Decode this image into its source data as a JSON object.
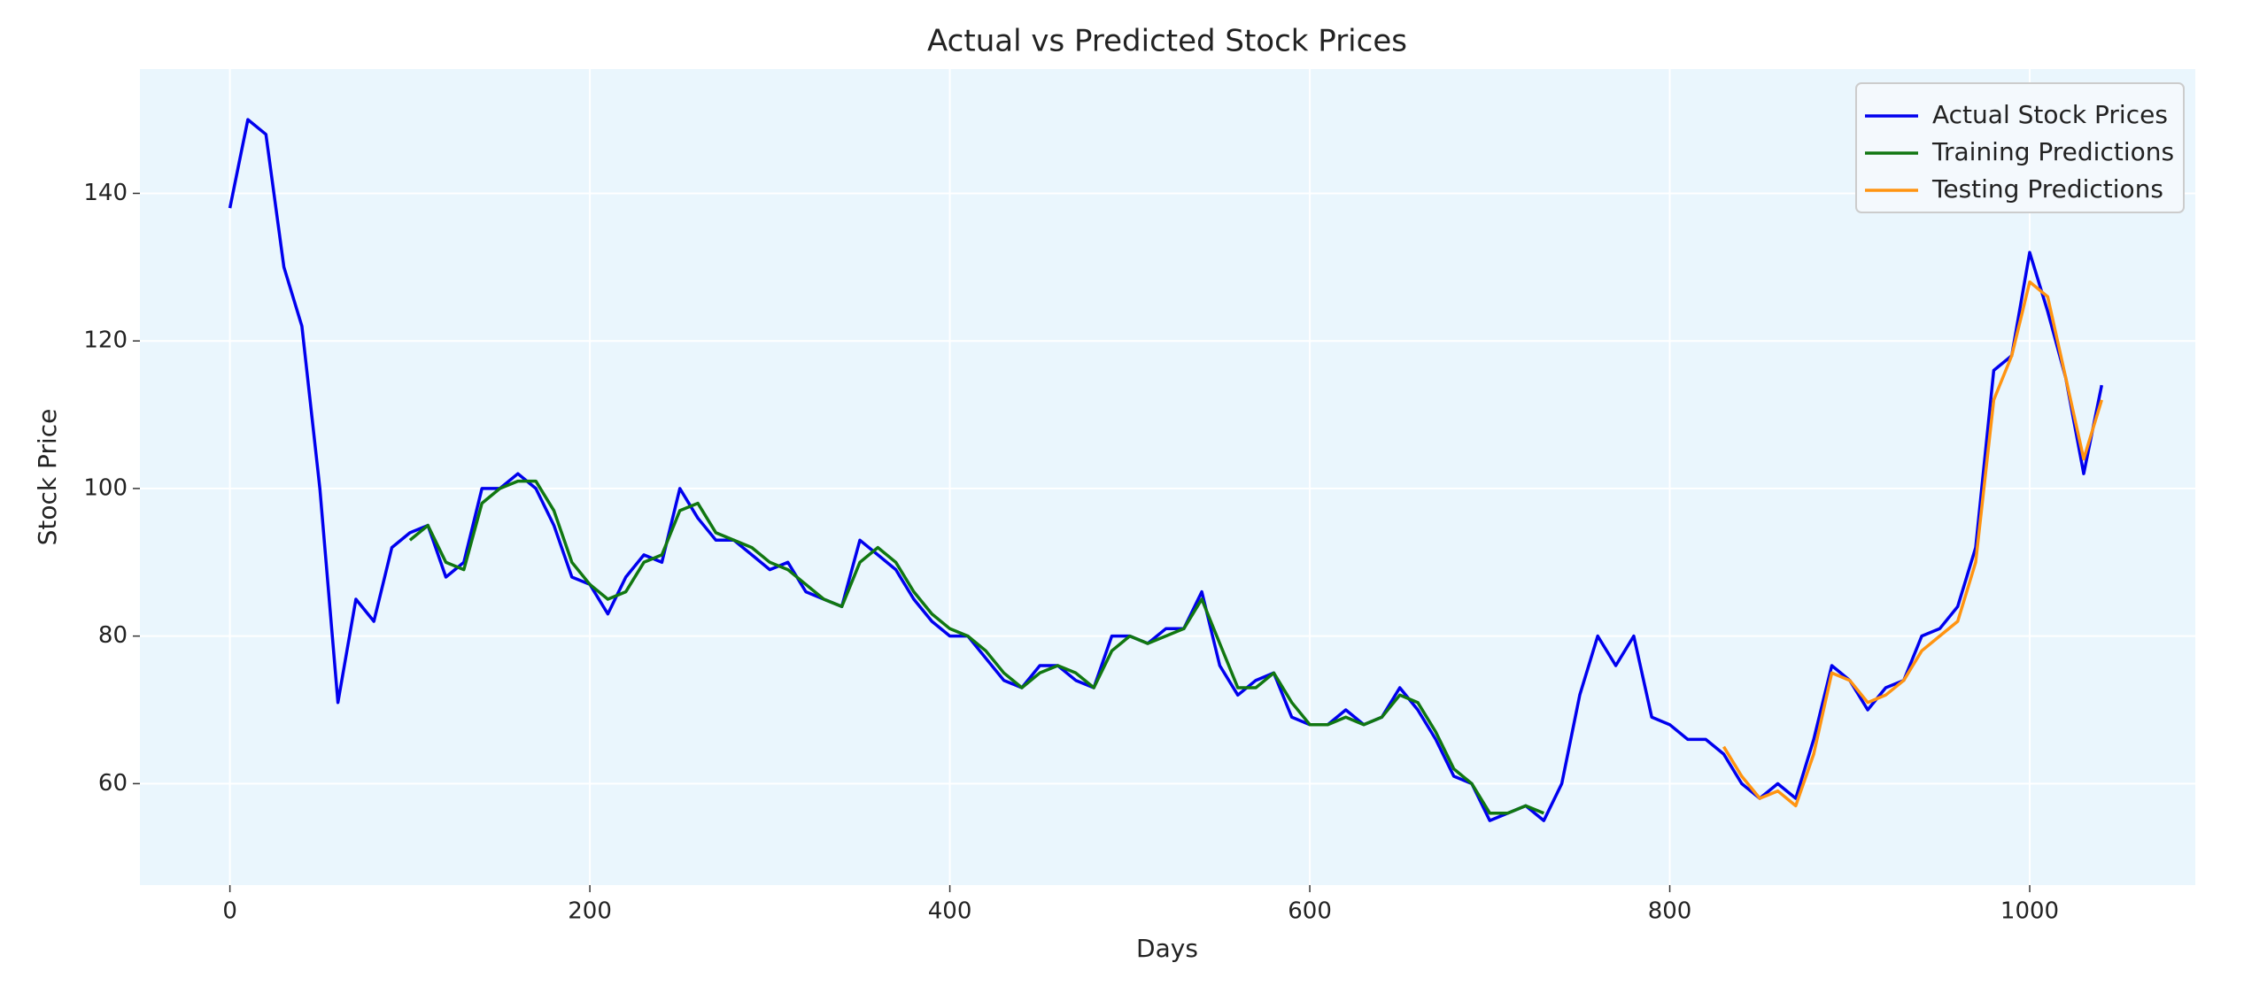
{
  "chart_data": {
    "type": "line",
    "title": "Actual vs Predicted Stock Prices",
    "xlabel": "Days",
    "ylabel": "Stock Price",
    "xlim": [
      -50,
      1092
    ],
    "ylim": [
      46.25,
      156.85
    ],
    "xticks": [
      0,
      200,
      400,
      600,
      800,
      1000
    ],
    "yticks": [
      60,
      80,
      100,
      120,
      140
    ],
    "grid": true,
    "legend": "upper right",
    "series": [
      {
        "name": "Actual Stock Prices",
        "color": "#0000ee",
        "x": [
          0,
          10,
          20,
          30,
          40,
          50,
          60,
          70,
          80,
          90,
          100,
          110,
          120,
          130,
          140,
          150,
          160,
          170,
          180,
          190,
          200,
          210,
          220,
          230,
          240,
          250,
          260,
          270,
          280,
          290,
          300,
          310,
          320,
          330,
          340,
          350,
          360,
          370,
          380,
          390,
          400,
          410,
          420,
          430,
          440,
          450,
          460,
          470,
          480,
          490,
          500,
          510,
          520,
          530,
          540,
          550,
          560,
          570,
          580,
          590,
          600,
          610,
          620,
          630,
          640,
          650,
          660,
          670,
          680,
          690,
          700,
          710,
          720,
          730,
          740,
          750,
          760,
          770,
          780,
          790,
          800,
          810,
          820,
          830,
          840,
          850,
          860,
          870,
          880,
          890,
          900,
          910,
          920,
          930,
          940,
          950,
          960,
          970,
          980,
          990,
          1000,
          1010,
          1020,
          1030,
          1040
        ],
        "values": [
          138,
          150,
          148,
          130,
          122,
          100,
          71,
          85,
          82,
          92,
          94,
          95,
          88,
          90,
          100,
          100,
          102,
          100,
          95,
          88,
          87,
          83,
          88,
          91,
          90,
          100,
          96,
          93,
          93,
          91,
          89,
          90,
          86,
          85,
          84,
          93,
          91,
          89,
          85,
          82,
          80,
          80,
          77,
          74,
          73,
          76,
          76,
          74,
          73,
          80,
          80,
          79,
          81,
          81,
          86,
          76,
          72,
          74,
          75,
          69,
          68,
          68,
          70,
          68,
          69,
          73,
          70,
          66,
          61,
          60,
          55,
          56,
          57,
          55,
          60,
          72,
          80,
          76,
          80,
          69,
          68,
          66,
          66,
          64,
          60,
          58,
          60,
          58,
          66,
          76,
          74,
          70,
          73,
          74,
          80,
          81,
          84,
          92,
          116,
          118,
          132,
          124,
          115,
          102,
          114
        ]
      },
      {
        "name": "Training Predictions",
        "color": "#117711",
        "x": [
          100,
          110,
          120,
          130,
          140,
          150,
          160,
          170,
          180,
          190,
          200,
          210,
          220,
          230,
          240,
          250,
          260,
          270,
          280,
          290,
          300,
          310,
          320,
          330,
          340,
          350,
          360,
          370,
          380,
          390,
          400,
          410,
          420,
          430,
          440,
          450,
          460,
          470,
          480,
          490,
          500,
          510,
          520,
          530,
          540,
          550,
          560,
          570,
          580,
          590,
          600,
          610,
          620,
          630,
          640,
          650,
          660,
          670,
          680,
          690,
          700,
          710,
          720,
          730
        ],
        "values": [
          93,
          95,
          90,
          89,
          98,
          100,
          101,
          101,
          97,
          90,
          87,
          85,
          86,
          90,
          91,
          97,
          98,
          94,
          93,
          92,
          90,
          89,
          87,
          85,
          84,
          90,
          92,
          90,
          86,
          83,
          81,
          80,
          78,
          75,
          73,
          75,
          76,
          75,
          73,
          78,
          80,
          79,
          80,
          81,
          85,
          79,
          73,
          73,
          75,
          71,
          68,
          68,
          69,
          68,
          69,
          72,
          71,
          67,
          62,
          60,
          56,
          56,
          57,
          56
        ]
      },
      {
        "name": "Testing Predictions",
        "color": "#ff9411",
        "x": [
          830,
          840,
          850,
          860,
          870,
          880,
          890,
          900,
          910,
          920,
          930,
          940,
          950,
          960,
          970,
          980,
          990,
          1000,
          1010,
          1020,
          1030,
          1040
        ],
        "values": [
          65,
          61,
          58,
          59,
          57,
          64,
          75,
          74,
          71,
          72,
          74,
          78,
          80,
          82,
          90,
          112,
          118,
          128,
          126,
          115,
          104,
          112
        ]
      }
    ]
  }
}
